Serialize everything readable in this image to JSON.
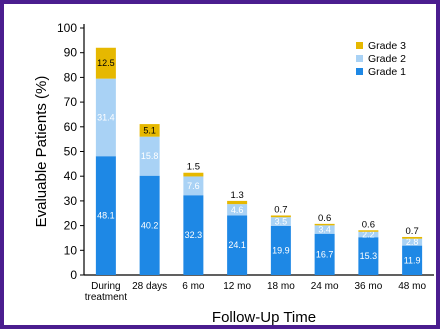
{
  "chart_data": {
    "type": "bar",
    "stacked": true,
    "title": "",
    "xlabel": "Follow-Up Time",
    "ylabel": "Evaluable Patients (%)",
    "ylim": [
      0,
      100
    ],
    "yticks": [
      0,
      10,
      20,
      30,
      40,
      50,
      60,
      70,
      80,
      90,
      100
    ],
    "categories": [
      "During treatment",
      "28 days",
      "6 mo",
      "12 mo",
      "18 mo",
      "24 mo",
      "36 mo",
      "48 mo"
    ],
    "category_lines": [
      [
        "During",
        "treatment"
      ],
      [
        "28 days"
      ],
      [
        "6 mo"
      ],
      [
        "12 mo"
      ],
      [
        "18 mo"
      ],
      [
        "24 mo"
      ],
      [
        "36 mo"
      ],
      [
        "48 mo"
      ]
    ],
    "series": [
      {
        "name": "Grade 1",
        "color": "#1e88e5",
        "values": [
          48.1,
          40.2,
          32.3,
          24.1,
          19.9,
          16.7,
          15.3,
          11.9
        ]
      },
      {
        "name": "Grade 2",
        "color": "#a9d2f5",
        "values": [
          31.4,
          15.8,
          7.6,
          4.6,
          3.5,
          3.4,
          2.2,
          2.8
        ]
      },
      {
        "name": "Grade 3",
        "color": "#e6b800",
        "values": [
          12.5,
          5.1,
          1.5,
          1.3,
          0.7,
          0.6,
          0.6,
          0.7
        ]
      }
    ],
    "legend_position": "top-right",
    "legend_order": [
      "Grade 3",
      "Grade 2",
      "Grade 1"
    ]
  }
}
